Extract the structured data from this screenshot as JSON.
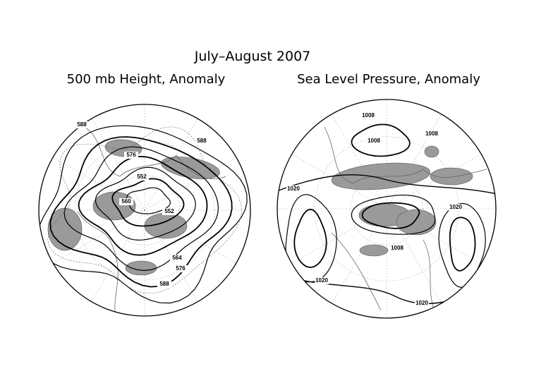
{
  "title": "July–August 2007",
  "panels": [
    {
      "subtitle": "500 mb Height, Anomaly",
      "contour_labels": [
        "588",
        "588",
        "576",
        "552",
        "560",
        "552",
        "564",
        "576",
        "588"
      ]
    },
    {
      "subtitle": "Sea Level Pressure, Anomaly",
      "contour_labels": [
        "1008",
        "1008",
        "1008",
        "1020",
        "1020",
        "1008",
        "1020",
        "1020"
      ]
    }
  ]
}
